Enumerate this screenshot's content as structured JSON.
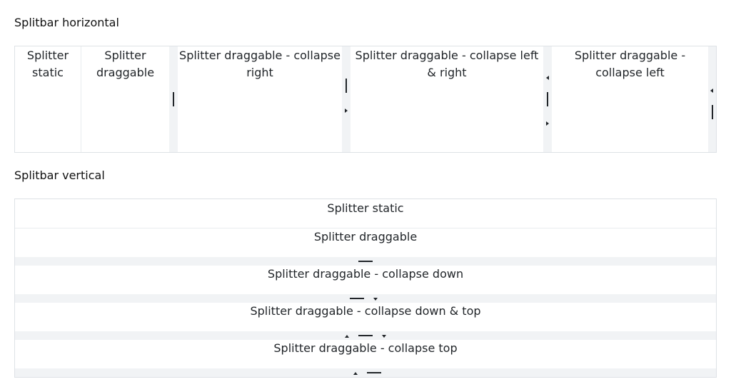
{
  "horizontal": {
    "title": "Splitbar horizontal",
    "panes": [
      "Splitter static",
      "Splitter draggable",
      "Splitter draggable - collapse right",
      "Splitter draggable - collapse left & right",
      "Splitter draggable - collapse left"
    ]
  },
  "vertical": {
    "title": "Splitbar vertical",
    "panes": [
      "Splitter static",
      "Splitter draggable",
      "Splitter draggable - collapse down",
      "Splitter draggable - collapse down & top",
      "Splitter draggable - collapse top"
    ]
  },
  "icons": {
    "grip": "drag-handle-icon",
    "collapse_left": "arrow-left-icon",
    "collapse_right": "arrow-right-icon",
    "collapse_up": "arrow-up-icon",
    "collapse_down": "arrow-down-icon"
  },
  "colors": {
    "text": "#212529",
    "border": "#dee2e6",
    "splitbar": "#f1f3f5"
  }
}
